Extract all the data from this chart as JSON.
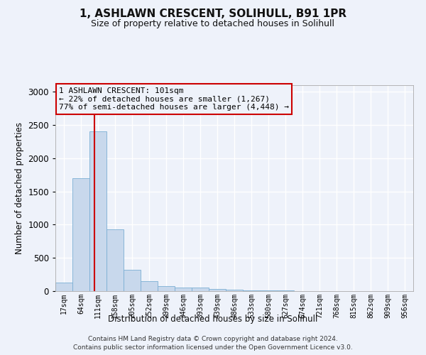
{
  "title": "1, ASHLAWN CRESCENT, SOLIHULL, B91 1PR",
  "subtitle": "Size of property relative to detached houses in Solihull",
  "xlabel": "Distribution of detached houses by size in Solihull",
  "ylabel": "Number of detached properties",
  "bar_color": "#c8d8ec",
  "bar_edge_color": "#7bafd4",
  "categories": [
    "17sqm",
    "64sqm",
    "111sqm",
    "158sqm",
    "205sqm",
    "252sqm",
    "299sqm",
    "346sqm",
    "393sqm",
    "439sqm",
    "486sqm",
    "533sqm",
    "580sqm",
    "627sqm",
    "674sqm",
    "721sqm",
    "768sqm",
    "815sqm",
    "862sqm",
    "909sqm",
    "956sqm"
  ],
  "values": [
    130,
    1700,
    2400,
    930,
    320,
    155,
    75,
    50,
    50,
    30,
    20,
    12,
    10,
    7,
    5,
    5,
    4,
    4,
    3,
    3,
    2
  ],
  "ylim": [
    0,
    3100
  ],
  "yticks": [
    0,
    500,
    1000,
    1500,
    2000,
    2500,
    3000
  ],
  "annotation_line1": "1 ASHLAWN CRESCENT: 101sqm",
  "annotation_line2": "← 22% of detached houses are smaller (1,267)",
  "annotation_line3": "77% of semi-detached houses are larger (4,448) →",
  "footer1": "Contains HM Land Registry data © Crown copyright and database right 2024.",
  "footer2": "Contains public sector information licensed under the Open Government Licence v3.0.",
  "background_color": "#eef2fa",
  "grid_color": "#ffffff",
  "annotation_box_color": "#cc0000",
  "vline_color": "#cc0000"
}
